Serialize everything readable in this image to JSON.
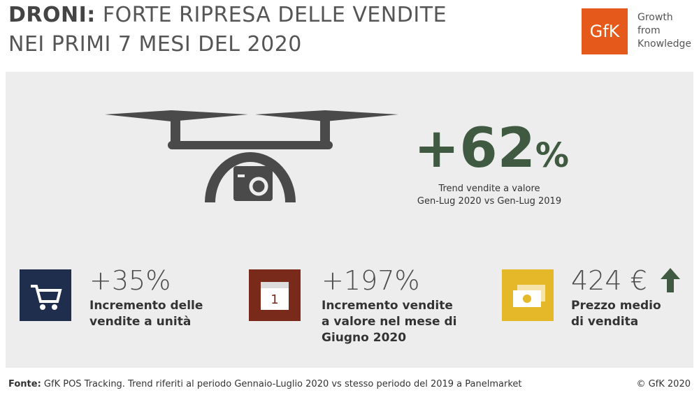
{
  "header": {
    "title_bold": "DRONI:",
    "title_line1": "FORTE RIPRESA DELLE VENDITE",
    "title_line2": "NEI PRIMI 7 MESI DEL 2020"
  },
  "logo": {
    "mark": "GfK",
    "lines": [
      "Growth",
      "from",
      "Knowledge"
    ]
  },
  "headline": {
    "value": "+62",
    "unit": "%",
    "caption": [
      "Trend vendite a valore",
      "Gen-Lug 2020 vs Gen-Lug 2019"
    ]
  },
  "stats": [
    {
      "value": "+35%",
      "label": [
        "Incremento delle",
        "vendite a unità"
      ]
    },
    {
      "value": "+197%",
      "label": [
        "Incremento vendite",
        "a valore nel mese di",
        "Giugno 2020"
      ],
      "icon_text": "1"
    },
    {
      "value": "424 €",
      "label": [
        "Prezzo medio",
        "di vendita"
      ]
    }
  ],
  "footer": {
    "source_label": "Fonte:",
    "source_text": "GfK POS Tracking. Trend riferiti al periodo Gennaio-Luglio 2020 vs stesso periodo del 2019 a Panelmarket",
    "copyright": "© GfK 2020"
  }
}
